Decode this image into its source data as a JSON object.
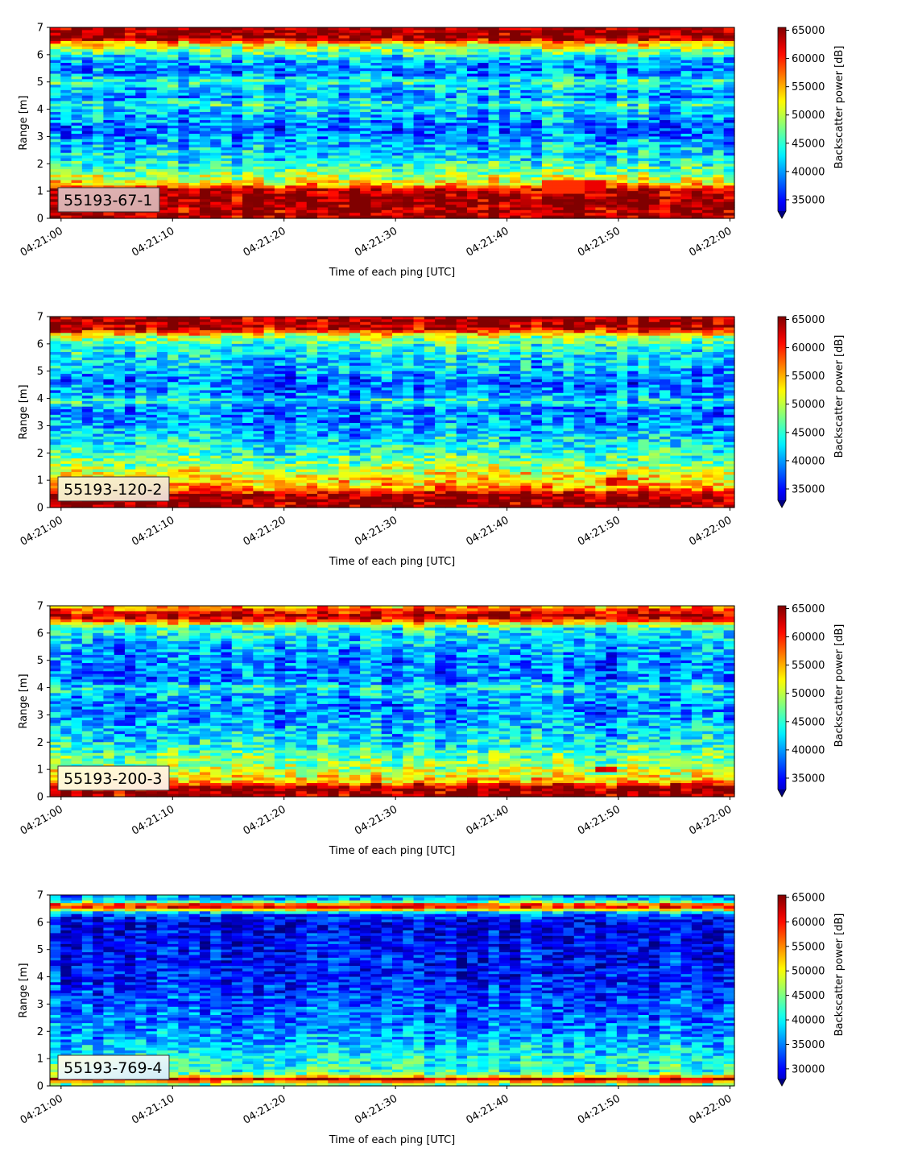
{
  "chart_data": [
    {
      "type": "heatmap",
      "instrument_label": "55193-67-1",
      "xlabel": "Time of each ping [UTC]",
      "ylabel": "Range [m]",
      "colorbar_label": "Backscatter power [dB]",
      "x_ticks": [
        "04:21:00",
        "04:21:10",
        "04:21:20",
        "04:21:30",
        "04:21:40",
        "04:21:50",
        "04:22:00"
      ],
      "x_range": [
        "04:20:59",
        "04:22:00"
      ],
      "y_ticks": [
        "0",
        "1",
        "2",
        "3",
        "4",
        "5",
        "6",
        "7"
      ],
      "ylim": [
        0,
        7
      ],
      "colorbar_ticks": [
        "35000",
        "40000",
        "45000",
        "50000",
        "55000",
        "60000",
        "65000"
      ],
      "color_range": [
        33000,
        65500
      ],
      "colormap": "jet",
      "colorbar_extend": "min",
      "profile": [
        [
          0.0,
          63000
        ],
        [
          0.1,
          65000
        ],
        [
          0.25,
          64000
        ],
        [
          0.5,
          65000
        ],
        [
          0.8,
          64500
        ],
        [
          1.05,
          63000
        ],
        [
          1.2,
          56000
        ],
        [
          1.5,
          51000
        ],
        [
          1.8,
          48000
        ],
        [
          2.2,
          45000
        ],
        [
          2.7,
          43000
        ],
        [
          3.2,
          40000
        ],
        [
          3.6,
          42000
        ],
        [
          4.0,
          44000
        ],
        [
          4.2,
          47000
        ],
        [
          4.4,
          42000
        ],
        [
          4.8,
          44000
        ],
        [
          5.0,
          47000
        ],
        [
          5.3,
          41000
        ],
        [
          5.7,
          42000
        ],
        [
          6.1,
          48000
        ],
        [
          6.4,
          54000
        ],
        [
          6.6,
          65000
        ],
        [
          7.0,
          65000
        ]
      ],
      "hotspots": [
        {
          "t": 44.3,
          "y0": 0.95,
          "y1": 1.45,
          "value": 60000
        },
        {
          "t": 46.3,
          "y0": 0.95,
          "y1": 1.45,
          "value": 60000
        },
        {
          "t": 48.0,
          "y0": 1.0,
          "y1": 1.35,
          "value": 62000
        }
      ]
    },
    {
      "type": "heatmap",
      "instrument_label": "55193-120-2",
      "xlabel": "Time of each ping [UTC]",
      "ylabel": "Range [m]",
      "colorbar_label": "Backscatter power [dB]",
      "x_ticks": [
        "04:21:00",
        "04:21:10",
        "04:21:20",
        "04:21:30",
        "04:21:40",
        "04:21:50",
        "04:22:00"
      ],
      "x_range": [
        "04:20:59",
        "04:22:00"
      ],
      "y_ticks": [
        "0",
        "1",
        "2",
        "3",
        "4",
        "5",
        "6",
        "7"
      ],
      "ylim": [
        0,
        7
      ],
      "colorbar_ticks": [
        "35000",
        "40000",
        "45000",
        "50000",
        "55000",
        "60000",
        "65000"
      ],
      "color_range": [
        33000,
        65500
      ],
      "colormap": "jet",
      "colorbar_extend": "min",
      "profile": [
        [
          0.0,
          64000
        ],
        [
          0.15,
          65000
        ],
        [
          0.5,
          64500
        ],
        [
          0.6,
          58000
        ],
        [
          0.9,
          55000
        ],
        [
          1.3,
          52000
        ],
        [
          1.8,
          48000
        ],
        [
          2.3,
          45000
        ],
        [
          3.0,
          42000
        ],
        [
          3.6,
          41000
        ],
        [
          3.9,
          46000
        ],
        [
          4.1,
          42000
        ],
        [
          4.6,
          40000
        ],
        [
          5.0,
          43000
        ],
        [
          5.5,
          44000
        ],
        [
          6.0,
          47000
        ],
        [
          6.3,
          52000
        ],
        [
          6.5,
          62000
        ],
        [
          6.7,
          65000
        ],
        [
          7.0,
          63000
        ]
      ],
      "hotspots": [
        {
          "t": 50.0,
          "y0": 0.8,
          "y1": 1.05,
          "value": 63000
        },
        {
          "t": 51.0,
          "y0": 0.8,
          "y1": 1.0,
          "value": 60000
        }
      ]
    },
    {
      "type": "heatmap",
      "instrument_label": "55193-200-3",
      "xlabel": "Time of each ping [UTC]",
      "ylabel": "Range [m]",
      "colorbar_label": "Backscatter power [dB]",
      "x_ticks": [
        "04:21:00",
        "04:21:10",
        "04:21:20",
        "04:21:30",
        "04:21:40",
        "04:21:50",
        "04:22:00"
      ],
      "x_range": [
        "04:20:59",
        "04:22:00"
      ],
      "y_ticks": [
        "0",
        "1",
        "2",
        "3",
        "4",
        "5",
        "6",
        "7"
      ],
      "ylim": [
        0,
        7
      ],
      "colorbar_ticks": [
        "35000",
        "40000",
        "45000",
        "50000",
        "55000",
        "60000",
        "65000"
      ],
      "color_range": [
        33000,
        65500
      ],
      "colormap": "jet",
      "colorbar_extend": "min",
      "profile": [
        [
          0.0,
          64000
        ],
        [
          0.4,
          64500
        ],
        [
          0.5,
          56000
        ],
        [
          0.8,
          52000
        ],
        [
          1.2,
          50000
        ],
        [
          1.8,
          46000
        ],
        [
          2.5,
          43000
        ],
        [
          3.2,
          41000
        ],
        [
          3.8,
          43000
        ],
        [
          4.0,
          46000
        ],
        [
          4.2,
          41000
        ],
        [
          5.0,
          41000
        ],
        [
          5.6,
          43000
        ],
        [
          6.2,
          46000
        ],
        [
          6.4,
          56000
        ],
        [
          6.6,
          65000
        ],
        [
          6.9,
          58000
        ],
        [
          7.0,
          55000
        ]
      ],
      "hotspots": [
        {
          "t": 48.5,
          "y0": 0.85,
          "y1": 1.05,
          "value": 63000
        },
        {
          "t": 49.5,
          "y0": 0.85,
          "y1": 1.05,
          "value": 62000
        }
      ]
    },
    {
      "type": "heatmap",
      "instrument_label": "55193-769-4",
      "xlabel": "Time of each ping [UTC]",
      "ylabel": "Range [m]",
      "colorbar_label": "Backscatter power [dB]",
      "x_ticks": [
        "04:21:00",
        "04:21:10",
        "04:21:20",
        "04:21:30",
        "04:21:40",
        "04:21:50",
        "04:22:00"
      ],
      "x_range": [
        "04:20:59",
        "04:22:00"
      ],
      "y_ticks": [
        "0",
        "1",
        "2",
        "3",
        "4",
        "5",
        "6",
        "7"
      ],
      "ylim": [
        0,
        7
      ],
      "colorbar_ticks": [
        "30000",
        "35000",
        "40000",
        "45000",
        "50000",
        "55000",
        "60000",
        "65000"
      ],
      "color_range": [
        28000,
        65500
      ],
      "colormap": "jet",
      "colorbar_extend": "min",
      "profile": [
        [
          0.0,
          44000
        ],
        [
          0.12,
          52000
        ],
        [
          0.2,
          63000
        ],
        [
          0.3,
          64500
        ],
        [
          0.35,
          52000
        ],
        [
          0.5,
          44000
        ],
        [
          1.0,
          43000
        ],
        [
          1.5,
          40000
        ],
        [
          2.0,
          38000
        ],
        [
          3.0,
          36000
        ],
        [
          4.0,
          34000
        ],
        [
          5.0,
          33000
        ],
        [
          6.0,
          32000
        ],
        [
          6.3,
          36000
        ],
        [
          6.5,
          56000
        ],
        [
          6.6,
          63000
        ],
        [
          6.7,
          52000
        ],
        [
          6.8,
          40000
        ],
        [
          7.0,
          38000
        ]
      ],
      "hotspots": []
    }
  ]
}
